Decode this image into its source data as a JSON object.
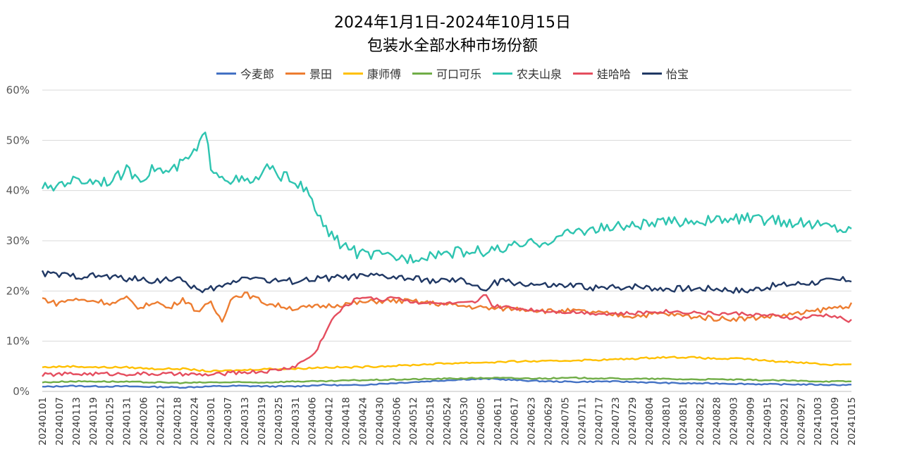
{
  "chart_data": {
    "type": "line",
    "title": "2024年1月1日-2024年10月15日",
    "subtitle": "包装水全部水种市场份额",
    "xlabel": "",
    "ylabel": "",
    "ylim": [
      0,
      60
    ],
    "y_ticks": [
      "0%",
      "10%",
      "20%",
      "30%",
      "40%",
      "50%",
      "60%"
    ],
    "y_unit": "%",
    "grid": "horizontal",
    "legend_position": "top",
    "x_tick_labels": [
      "20240101",
      "20240107",
      "20240113",
      "20240119",
      "20240125",
      "20240131",
      "20240206",
      "20240212",
      "20240218",
      "20240224",
      "20240301",
      "20240307",
      "20240313",
      "20240319",
      "20240325",
      "20240331",
      "20240406",
      "20240412",
      "20240418",
      "20240424",
      "20240430",
      "20240506",
      "20240512",
      "20240518",
      "20240524",
      "20240530",
      "20240605",
      "20240611",
      "20240617",
      "20240623",
      "20240629",
      "20240705",
      "20240711",
      "20240717",
      "20240723",
      "20240729",
      "20240804",
      "20240810",
      "20240816",
      "20240822",
      "20240828",
      "20240903",
      "20240909",
      "20240915",
      "20240921",
      "20240927",
      "20241003",
      "20241009",
      "20241015"
    ],
    "x_start": "20240101",
    "x_end": "20241015",
    "series": [
      {
        "name": "今麦郎",
        "color": "#4472C4",
        "anchors": [
          [
            0,
            0.9
          ],
          [
            10,
            1.1
          ],
          [
            20,
            1.0
          ],
          [
            30,
            1.0
          ],
          [
            40,
            0.9
          ],
          [
            50,
            0.8
          ],
          [
            60,
            1.0
          ],
          [
            70,
            1.1
          ],
          [
            80,
            1.0
          ],
          [
            90,
            1.0
          ],
          [
            100,
            1.3
          ],
          [
            110,
            1.2
          ],
          [
            120,
            1.5
          ],
          [
            130,
            1.8
          ],
          [
            140,
            2.1
          ],
          [
            150,
            2.4
          ],
          [
            160,
            2.5
          ],
          [
            170,
            2.2
          ],
          [
            180,
            2.0
          ],
          [
            190,
            1.9
          ],
          [
            200,
            2.0
          ],
          [
            210,
            1.9
          ],
          [
            220,
            1.7
          ],
          [
            230,
            1.6
          ],
          [
            240,
            1.6
          ],
          [
            250,
            1.5
          ],
          [
            260,
            1.4
          ],
          [
            270,
            1.4
          ],
          [
            280,
            1.3
          ],
          [
            288,
            1.3
          ]
        ]
      },
      {
        "name": "景田",
        "color": "#ED7D31",
        "anchors": [
          [
            0,
            18.5
          ],
          [
            5,
            17.5
          ],
          [
            10,
            18.3
          ],
          [
            20,
            18.0
          ],
          [
            25,
            17.5
          ],
          [
            30,
            18.5
          ],
          [
            35,
            16.5
          ],
          [
            40,
            18.0
          ],
          [
            45,
            16.5
          ],
          [
            50,
            18.5
          ],
          [
            55,
            16.0
          ],
          [
            60,
            17.5
          ],
          [
            64,
            14.0
          ],
          [
            67,
            18.5
          ],
          [
            72,
            19.5
          ],
          [
            80,
            17.5
          ],
          [
            90,
            16.5
          ],
          [
            100,
            17.0
          ],
          [
            110,
            17.5
          ],
          [
            120,
            18.0
          ],
          [
            130,
            18.0
          ],
          [
            140,
            17.5
          ],
          [
            150,
            17.0
          ],
          [
            160,
            16.5
          ],
          [
            170,
            16.5
          ],
          [
            180,
            16.0
          ],
          [
            190,
            16.0
          ],
          [
            200,
            15.5
          ],
          [
            210,
            15.0
          ],
          [
            220,
            15.5
          ],
          [
            230,
            15.0
          ],
          [
            240,
            14.5
          ],
          [
            250,
            14.5
          ],
          [
            260,
            15.0
          ],
          [
            270,
            15.5
          ],
          [
            280,
            16.5
          ],
          [
            288,
            17.2
          ]
        ]
      },
      {
        "name": "康师傅",
        "color": "#FFC000",
        "anchors": [
          [
            0,
            4.8
          ],
          [
            10,
            5.0
          ],
          [
            20,
            4.8
          ],
          [
            30,
            4.8
          ],
          [
            40,
            4.5
          ],
          [
            50,
            4.5
          ],
          [
            60,
            4.0
          ],
          [
            70,
            4.2
          ],
          [
            80,
            4.5
          ],
          [
            90,
            4.5
          ],
          [
            100,
            4.8
          ],
          [
            110,
            4.8
          ],
          [
            120,
            5.0
          ],
          [
            130,
            5.2
          ],
          [
            140,
            5.5
          ],
          [
            150,
            5.7
          ],
          [
            160,
            5.8
          ],
          [
            170,
            6.0
          ],
          [
            180,
            6.0
          ],
          [
            190,
            6.2
          ],
          [
            200,
            6.3
          ],
          [
            210,
            6.5
          ],
          [
            220,
            6.8
          ],
          [
            230,
            6.8
          ],
          [
            240,
            6.5
          ],
          [
            250,
            6.5
          ],
          [
            260,
            6.0
          ],
          [
            270,
            5.8
          ],
          [
            280,
            5.3
          ],
          [
            288,
            5.5
          ]
        ]
      },
      {
        "name": "可口可乐",
        "color": "#70AD47",
        "anchors": [
          [
            0,
            1.8
          ],
          [
            10,
            2.0
          ],
          [
            20,
            2.0
          ],
          [
            30,
            1.9
          ],
          [
            40,
            1.8
          ],
          [
            50,
            1.7
          ],
          [
            60,
            1.8
          ],
          [
            70,
            1.8
          ],
          [
            80,
            1.8
          ],
          [
            90,
            2.0
          ],
          [
            100,
            2.0
          ],
          [
            110,
            2.2
          ],
          [
            120,
            2.3
          ],
          [
            130,
            2.4
          ],
          [
            140,
            2.5
          ],
          [
            150,
            2.6
          ],
          [
            160,
            2.7
          ],
          [
            170,
            2.6
          ],
          [
            180,
            2.6
          ],
          [
            190,
            2.7
          ],
          [
            200,
            2.6
          ],
          [
            210,
            2.5
          ],
          [
            220,
            2.5
          ],
          [
            230,
            2.4
          ],
          [
            240,
            2.4
          ],
          [
            250,
            2.3
          ],
          [
            260,
            2.2
          ],
          [
            270,
            2.1
          ],
          [
            280,
            2.0
          ],
          [
            288,
            2.0
          ]
        ]
      },
      {
        "name": "农夫山泉",
        "color": "#2EC4B0",
        "anchors": [
          [
            0,
            41.0
          ],
          [
            3,
            40.0
          ],
          [
            6,
            41.5
          ],
          [
            10,
            42.0
          ],
          [
            20,
            42.0
          ],
          [
            25,
            42.0
          ],
          [
            30,
            44.0
          ],
          [
            35,
            42.5
          ],
          [
            40,
            44.5
          ],
          [
            45,
            43.5
          ],
          [
            50,
            45.5
          ],
          [
            55,
            48.0
          ],
          [
            58,
            51.5
          ],
          [
            60,
            45.0
          ],
          [
            65,
            42.5
          ],
          [
            70,
            42.0
          ],
          [
            75,
            41.5
          ],
          [
            80,
            44.5
          ],
          [
            85,
            43.0
          ],
          [
            90,
            42.0
          ],
          [
            95,
            39.0
          ],
          [
            100,
            33.0
          ],
          [
            103,
            31.0
          ],
          [
            106,
            29.5
          ],
          [
            110,
            28.5
          ],
          [
            112,
            27.5
          ],
          [
            120,
            27.0
          ],
          [
            130,
            26.5
          ],
          [
            140,
            27.5
          ],
          [
            150,
            27.8
          ],
          [
            160,
            28.0
          ],
          [
            170,
            29.0
          ],
          [
            180,
            30.0
          ],
          [
            185,
            31.0
          ],
          [
            190,
            32.0
          ],
          [
            200,
            32.5
          ],
          [
            210,
            33.0
          ],
          [
            220,
            33.5
          ],
          [
            230,
            34.0
          ],
          [
            240,
            34.0
          ],
          [
            250,
            34.5
          ],
          [
            260,
            34.0
          ],
          [
            270,
            33.5
          ],
          [
            280,
            33.0
          ],
          [
            288,
            32.0
          ]
        ]
      },
      {
        "name": "娃哈哈",
        "color": "#E54E5F",
        "anchors": [
          [
            0,
            3.3
          ],
          [
            10,
            3.5
          ],
          [
            20,
            3.5
          ],
          [
            30,
            3.5
          ],
          [
            40,
            3.5
          ],
          [
            50,
            3.4
          ],
          [
            60,
            3.3
          ],
          [
            70,
            3.8
          ],
          [
            80,
            4.0
          ],
          [
            86,
            4.5
          ],
          [
            90,
            5.0
          ],
          [
            94,
            6.5
          ],
          [
            97,
            7.5
          ],
          [
            100,
            11.0
          ],
          [
            104,
            15.0
          ],
          [
            108,
            17.0
          ],
          [
            112,
            18.5
          ],
          [
            116,
            19.0
          ],
          [
            120,
            18.0
          ],
          [
            125,
            19.0
          ],
          [
            130,
            18.0
          ],
          [
            140,
            17.5
          ],
          [
            150,
            17.5
          ],
          [
            155,
            17.8
          ],
          [
            158,
            19.5
          ],
          [
            160,
            17.0
          ],
          [
            170,
            16.5
          ],
          [
            180,
            16.0
          ],
          [
            190,
            15.8
          ],
          [
            200,
            15.5
          ],
          [
            210,
            15.5
          ],
          [
            220,
            16.0
          ],
          [
            230,
            15.8
          ],
          [
            240,
            15.5
          ],
          [
            250,
            15.5
          ],
          [
            260,
            15.0
          ],
          [
            270,
            14.5
          ],
          [
            275,
            15.0
          ],
          [
            280,
            15.2
          ],
          [
            288,
            14.0
          ]
        ]
      },
      {
        "name": "怡宝",
        "color": "#203864",
        "anchors": [
          [
            0,
            23.5
          ],
          [
            10,
            23.0
          ],
          [
            20,
            23.0
          ],
          [
            30,
            22.5
          ],
          [
            40,
            22.0
          ],
          [
            45,
            22.5
          ],
          [
            50,
            22.0
          ],
          [
            55,
            20.5
          ],
          [
            57,
            19.5
          ],
          [
            60,
            20.5
          ],
          [
            65,
            21.0
          ],
          [
            70,
            22.5
          ],
          [
            75,
            23.0
          ],
          [
            80,
            22.0
          ],
          [
            90,
            22.0
          ],
          [
            100,
            22.5
          ],
          [
            110,
            22.8
          ],
          [
            120,
            23.0
          ],
          [
            130,
            22.5
          ],
          [
            140,
            22.0
          ],
          [
            150,
            22.0
          ],
          [
            155,
            21.0
          ],
          [
            158,
            19.5
          ],
          [
            160,
            21.5
          ],
          [
            165,
            22.0
          ],
          [
            170,
            21.5
          ],
          [
            180,
            21.0
          ],
          [
            190,
            21.0
          ],
          [
            200,
            20.5
          ],
          [
            210,
            21.0
          ],
          [
            220,
            20.5
          ],
          [
            230,
            20.5
          ],
          [
            240,
            20.5
          ],
          [
            250,
            20.0
          ],
          [
            260,
            21.0
          ],
          [
            270,
            21.5
          ],
          [
            280,
            22.0
          ],
          [
            288,
            22.3
          ]
        ]
      }
    ]
  }
}
